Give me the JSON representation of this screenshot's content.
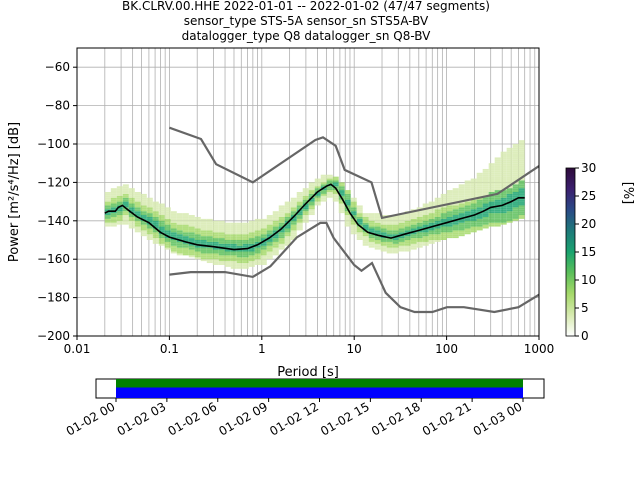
{
  "title_lines": [
    "BK.CLRV.00.HHE   2022-01-01 -- 2022-01-02  (47/47 segments)",
    "sensor_type STS-5A sensor_sn STS5A-BV",
    "datalogger_type Q8 datalogger_sn Q8-BV"
  ],
  "chart_data": [
    {
      "type": "heatmap",
      "title": "BK.CLRV.00.HHE   2022-01-01 -- 2022-01-02  (47/47 segments)",
      "xlabel": "Period [s]",
      "ylabel": "Power [m²/s⁴/Hz] [dB]",
      "xscale": "log",
      "xlim": [
        0.01,
        1000
      ],
      "ylim": [
        -200,
        -50
      ],
      "x_ticks": [
        0.01,
        0.1,
        1,
        10,
        100,
        1000
      ],
      "x_tick_labels": [
        "0.01",
        "0.1",
        "1",
        "10",
        "100",
        "1000"
      ],
      "y_ticks": [
        -200,
        -180,
        -160,
        -140,
        -120,
        -100,
        -80,
        -60
      ],
      "grid": true,
      "colorbar": {
        "label": "[%]",
        "range": [
          0,
          30
        ],
        "ticks": [
          0,
          5,
          10,
          15,
          20,
          25,
          30
        ],
        "colors": [
          "#ffffff",
          "#d7eab0",
          "#a6d96a",
          "#5cbf5a",
          "#1aa36f",
          "#1e7a7a",
          "#2a4a86",
          "#3b1f6e",
          "#2d0a3a"
        ]
      },
      "noise_models": {
        "color": "#666666",
        "nhnm": [
          [
            0.1,
            -91.5
          ],
          [
            0.22,
            -97.4
          ],
          [
            0.32,
            -110.5
          ],
          [
            0.8,
            -120
          ],
          [
            3.8,
            -97.9
          ],
          [
            4.6,
            -96.5
          ],
          [
            6.3,
            -101
          ],
          [
            7.9,
            -113.5
          ],
          [
            15.4,
            -120
          ],
          [
            20,
            -138.5
          ],
          [
            354.8,
            -126
          ],
          [
            1000,
            -111.5
          ]
        ],
        "nlnm": [
          [
            0.1,
            -168
          ],
          [
            0.17,
            -166.7
          ],
          [
            0.4,
            -166.7
          ],
          [
            0.8,
            -169.2
          ],
          [
            1.24,
            -163.7
          ],
          [
            2.4,
            -148.6
          ],
          [
            4.3,
            -141.1
          ],
          [
            5,
            -141.1
          ],
          [
            6,
            -149
          ],
          [
            10,
            -163
          ],
          [
            12,
            -166
          ],
          [
            15.6,
            -162
          ],
          [
            21.9,
            -177.5
          ],
          [
            31.6,
            -185
          ],
          [
            45,
            -187.5
          ],
          [
            70,
            -187.5
          ],
          [
            101,
            -185
          ],
          [
            154,
            -185
          ],
          [
            328,
            -187.5
          ],
          [
            600,
            -185
          ],
          [
            1000,
            -178.5
          ]
        ]
      },
      "mean_curve": {
        "color": "#000000",
        "points": [
          [
            0.02,
            -136
          ],
          [
            0.022,
            -135
          ],
          [
            0.026,
            -135
          ],
          [
            0.028,
            -133
          ],
          [
            0.031,
            -132
          ],
          [
            0.036,
            -134.5
          ],
          [
            0.045,
            -138
          ],
          [
            0.06,
            -141
          ],
          [
            0.08,
            -146
          ],
          [
            0.1,
            -148.5
          ],
          [
            0.15,
            -151
          ],
          [
            0.2,
            -152.5
          ],
          [
            0.3,
            -153.5
          ],
          [
            0.5,
            -155
          ],
          [
            0.7,
            -154.5
          ],
          [
            0.9,
            -152.5
          ],
          [
            1.2,
            -149
          ],
          [
            1.6,
            -144.5
          ],
          [
            2.2,
            -138
          ],
          [
            3,
            -131
          ],
          [
            4,
            -125
          ],
          [
            5,
            -122
          ],
          [
            5.6,
            -121
          ],
          [
            6.3,
            -123
          ],
          [
            7.5,
            -129
          ],
          [
            9,
            -136
          ],
          [
            11,
            -142
          ],
          [
            14,
            -146
          ],
          [
            18,
            -147.5
          ],
          [
            25,
            -149
          ],
          [
            35,
            -147
          ],
          [
            50,
            -145
          ],
          [
            70,
            -143
          ],
          [
            100,
            -141
          ],
          [
            140,
            -139
          ],
          [
            200,
            -137
          ],
          [
            250,
            -135
          ],
          [
            300,
            -133
          ],
          [
            400,
            -132
          ],
          [
            500,
            -130
          ],
          [
            600,
            -128
          ],
          [
            700,
            -128
          ]
        ]
      },
      "density_envelope": [
        {
          "period": 0.02,
          "low": -143,
          "high": -126
        },
        {
          "period": 0.03,
          "low": -141,
          "high": -122
        },
        {
          "period": 0.05,
          "low": -148,
          "high": -128
        },
        {
          "period": 0.1,
          "low": -156,
          "high": -136
        },
        {
          "period": 0.2,
          "low": -160,
          "high": -140
        },
        {
          "period": 0.5,
          "low": -165,
          "high": -143
        },
        {
          "period": 1,
          "low": -162,
          "high": -140
        },
        {
          "period": 2,
          "low": -150,
          "high": -130
        },
        {
          "period": 4,
          "low": -130,
          "high": -118
        },
        {
          "period": 5.6,
          "low": -127,
          "high": -117
        },
        {
          "period": 8,
          "low": -143,
          "high": -126
        },
        {
          "period": 12,
          "low": -152,
          "high": -137
        },
        {
          "period": 25,
          "low": -157,
          "high": -139
        },
        {
          "period": 50,
          "low": -153,
          "high": -134
        },
        {
          "period": 100,
          "low": -149,
          "high": -126
        },
        {
          "period": 200,
          "low": -145,
          "high": -118
        },
        {
          "period": 400,
          "low": -141,
          "high": -105
        },
        {
          "period": 700,
          "low": -137,
          "high": -98
        }
      ]
    },
    {
      "type": "timeline",
      "tick_labels": [
        "01-02 00",
        "01-02 03",
        "01-02 06",
        "01-02 09",
        "01-02 12",
        "01-02 15",
        "01-02 18",
        "01-02 21",
        "01-03 00"
      ],
      "bars": [
        {
          "color": "#008000",
          "start": 0,
          "end": 1
        },
        {
          "color": "#0000ff",
          "start": 0,
          "end": 1
        }
      ]
    }
  ]
}
